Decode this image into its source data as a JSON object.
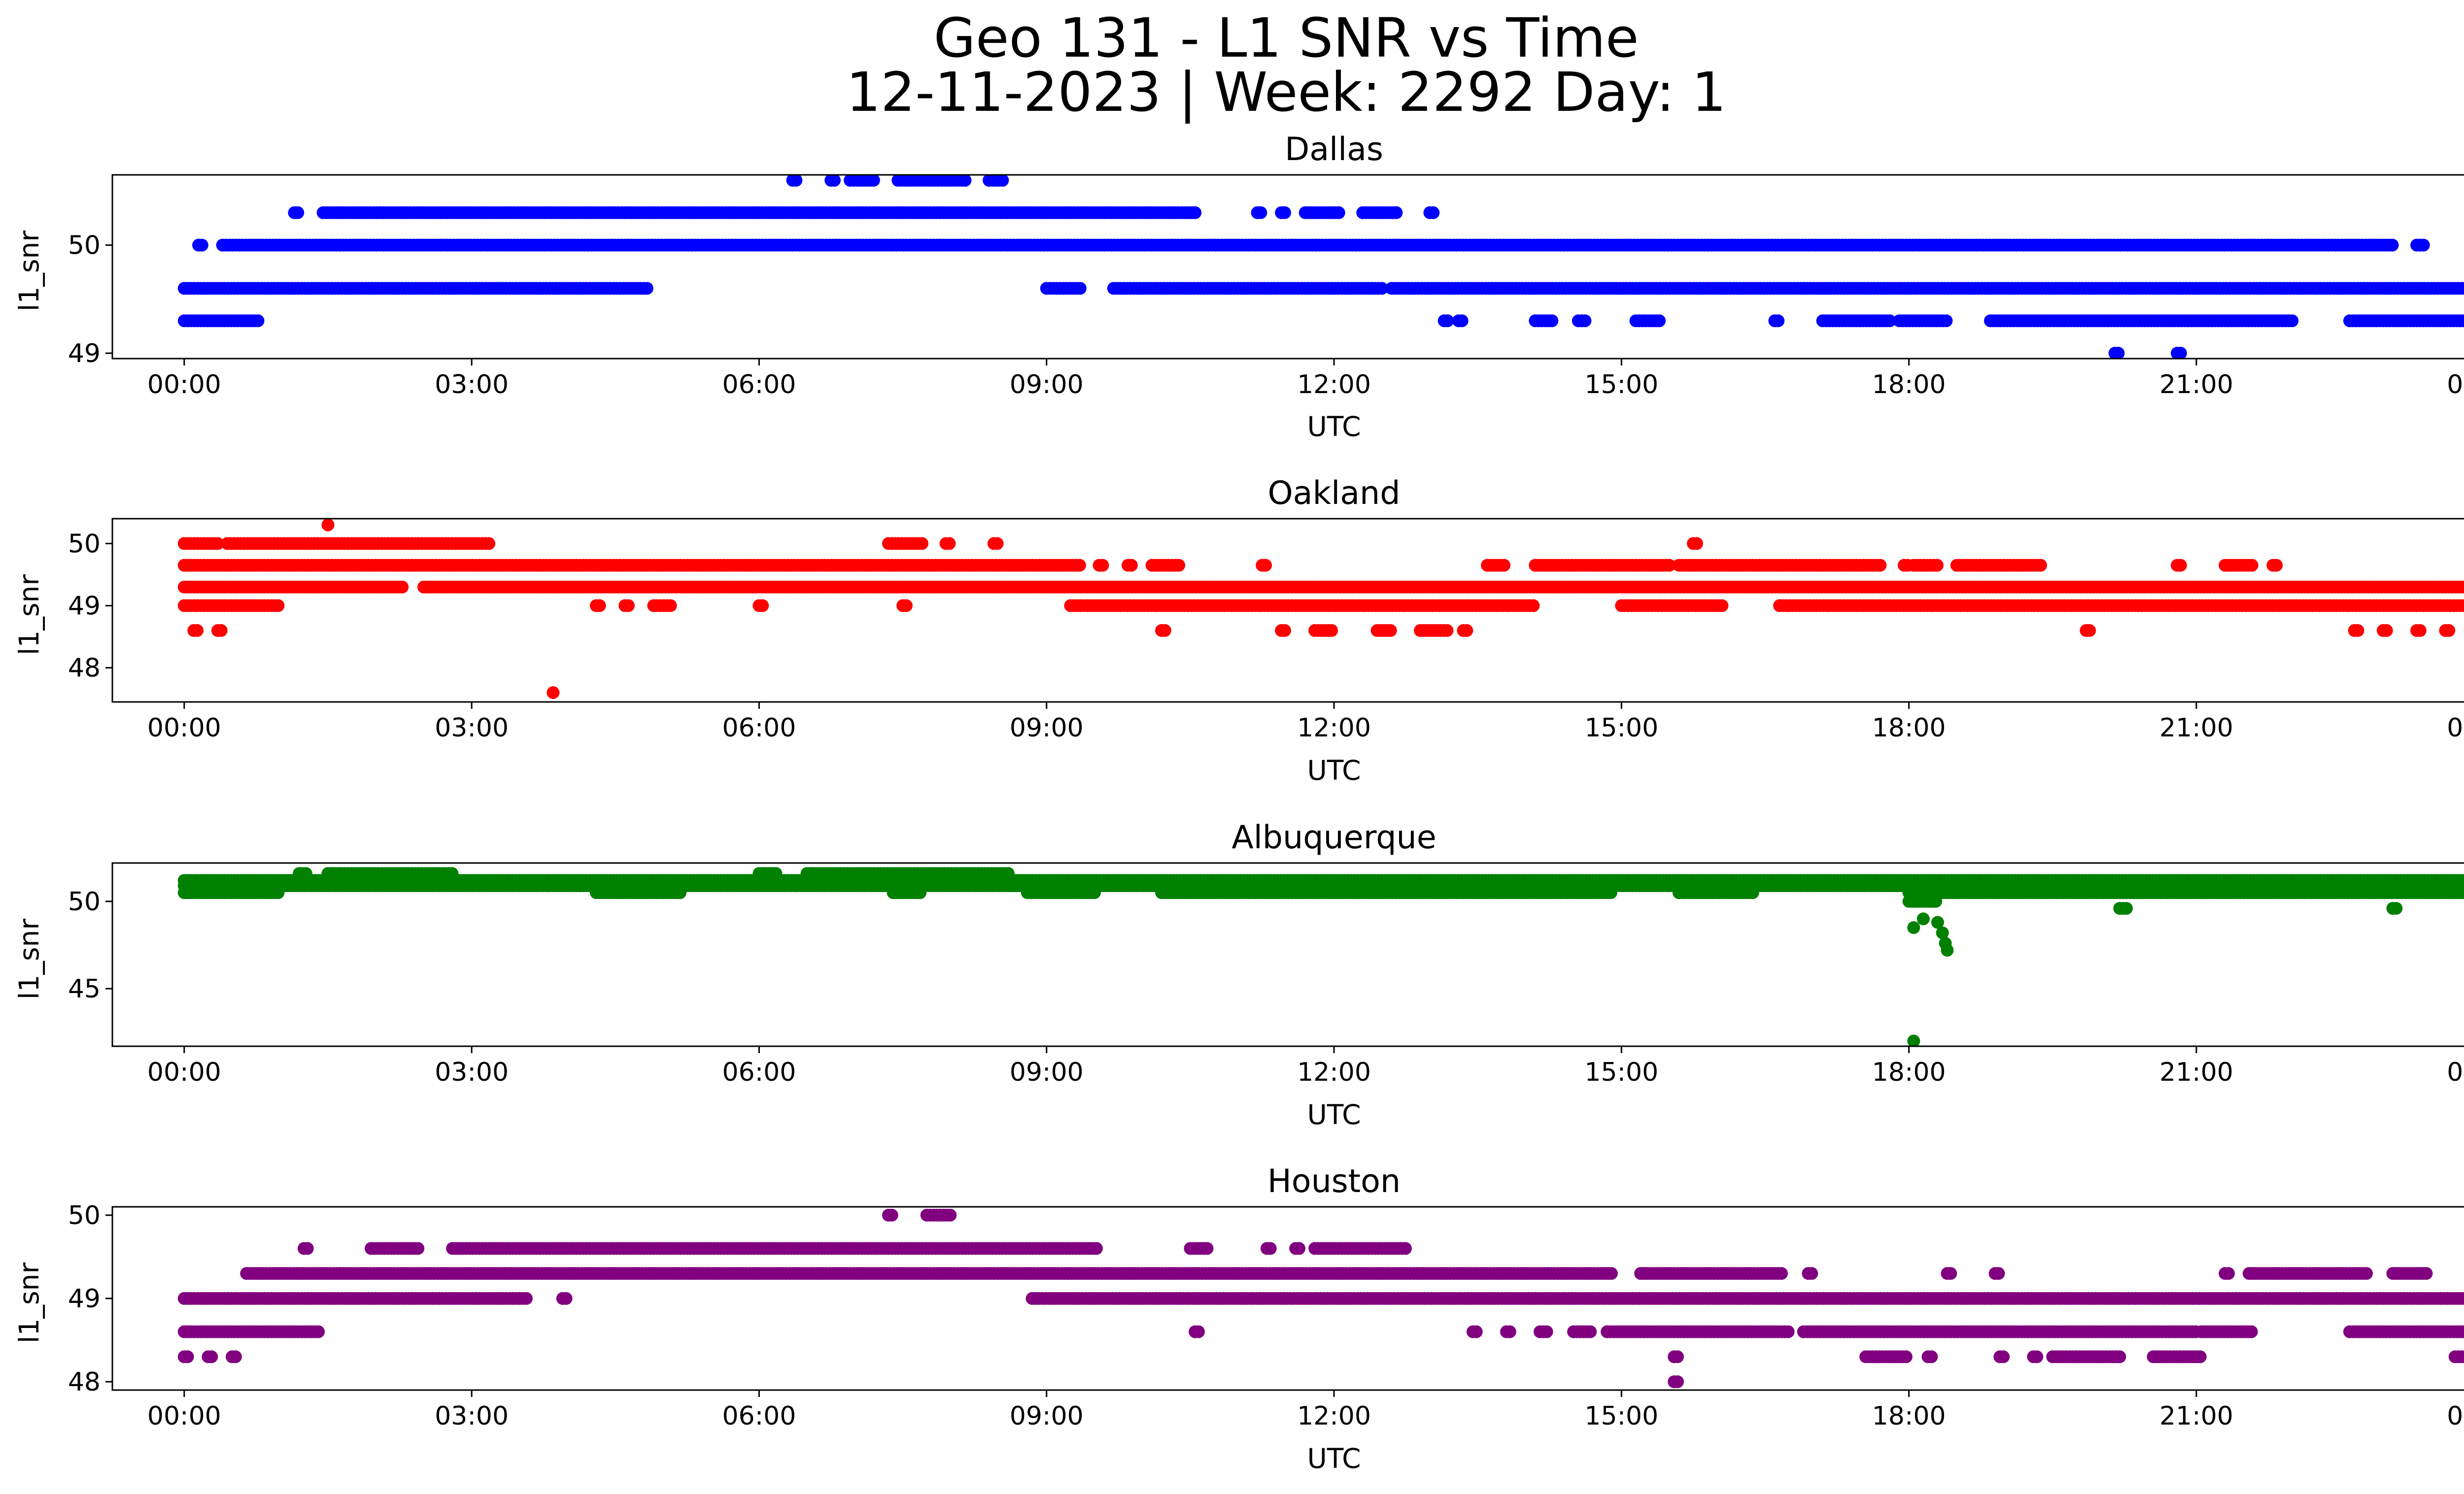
{
  "figure": {
    "title_line1": "Geo 131 - L1 SNR vs Time",
    "title_line2": "12-11-2023 | Week: 2292 Day: 1"
  },
  "chart_data": [
    {
      "type": "scatter",
      "title": "Dallas",
      "xlabel": "UTC",
      "ylabel": "l1_snr",
      "color": "#0000ff",
      "xlim": [
        -0.75,
        24.75
      ],
      "ylim": [
        48.95,
        50.65
      ],
      "xticks": [
        "00:00",
        "03:00",
        "06:00",
        "09:00",
        "12:00",
        "15:00",
        "18:00",
        "21:00",
        "00:00"
      ],
      "yticks": [
        49,
        50
      ],
      "bands": [
        {
          "y": 50.6,
          "segments": [
            [
              6.35,
              6.4
            ],
            [
              6.75,
              6.8
            ],
            [
              6.95,
              7.2
            ],
            [
              7.45,
              8.15
            ],
            [
              8.4,
              8.55
            ]
          ]
        },
        {
          "y": 50.3,
          "segments": [
            [
              1.15,
              1.2
            ],
            [
              1.45,
              10.55
            ],
            [
              11.2,
              11.25
            ],
            [
              11.45,
              11.5
            ],
            [
              11.7,
              12.05
            ],
            [
              12.3,
              12.65
            ],
            [
              13.0,
              13.05
            ]
          ]
        },
        {
          "y": 50.0,
          "segments": [
            [
              0.15,
              0.2
            ],
            [
              0.4,
              23.05
            ],
            [
              23.3,
              23.4
            ]
          ]
        },
        {
          "y": 49.6,
          "segments": [
            [
              0.0,
              4.85
            ],
            [
              9.0,
              9.35
            ],
            [
              9.7,
              12.5
            ],
            [
              12.6,
              24.0
            ]
          ]
        },
        {
          "y": 49.3,
          "segments": [
            [
              0.0,
              0.8
            ],
            [
              13.15,
              13.2
            ],
            [
              13.3,
              13.35
            ],
            [
              14.1,
              14.3
            ],
            [
              14.55,
              14.65
            ],
            [
              15.15,
              15.4
            ],
            [
              16.6,
              16.65
            ],
            [
              17.1,
              17.8
            ],
            [
              17.9,
              18.4
            ],
            [
              18.85,
              22.0
            ],
            [
              22.6,
              24.0
            ]
          ]
        },
        {
          "y": 49.0,
          "segments": [
            [
              20.15,
              20.2
            ],
            [
              20.8,
              20.85
            ]
          ]
        }
      ],
      "points": []
    },
    {
      "type": "scatter",
      "title": "Oakland",
      "xlabel": "UTC",
      "ylabel": "l1_snr",
      "color": "#ff0000",
      "xlim": [
        -0.75,
        24.75
      ],
      "ylim": [
        47.45,
        50.4
      ],
      "xticks": [
        "00:00",
        "03:00",
        "06:00",
        "09:00",
        "12:00",
        "15:00",
        "18:00",
        "21:00",
        "00:00"
      ],
      "yticks": [
        48,
        49,
        50
      ],
      "bands": [
        {
          "y": 50.0,
          "segments": [
            [
              0.0,
              0.35
            ],
            [
              0.45,
              3.2
            ],
            [
              7.35,
              7.7
            ],
            [
              7.95,
              8.0
            ],
            [
              8.45,
              8.5
            ],
            [
              15.75,
              15.8
            ]
          ]
        },
        {
          "y": 49.65,
          "segments": [
            [
              0.0,
              9.35
            ],
            [
              9.55,
              9.6
            ],
            [
              9.85,
              9.9
            ],
            [
              10.1,
              10.4
            ],
            [
              11.25,
              11.3
            ],
            [
              13.6,
              13.8
            ],
            [
              14.1,
              15.5
            ],
            [
              15.6,
              17.7
            ],
            [
              17.95,
              18.0
            ],
            [
              18.05,
              18.3
            ],
            [
              18.5,
              19.4
            ],
            [
              20.8,
              20.85
            ],
            [
              21.3,
              21.6
            ],
            [
              21.8,
              21.85
            ]
          ]
        },
        {
          "y": 49.3,
          "segments": [
            [
              0.0,
              2.3
            ],
            [
              2.5,
              24.0
            ]
          ]
        },
        {
          "y": 49.0,
          "segments": [
            [
              0.0,
              1.0
            ],
            [
              4.3,
              4.35
            ],
            [
              4.6,
              4.65
            ],
            [
              4.9,
              5.1
            ],
            [
              6.0,
              6.05
            ],
            [
              7.5,
              7.55
            ],
            [
              9.25,
              14.1
            ],
            [
              15.0,
              16.05
            ],
            [
              16.65,
              24.0
            ]
          ]
        },
        {
          "y": 48.6,
          "segments": [
            [
              0.1,
              0.15
            ],
            [
              0.35,
              0.4
            ],
            [
              10.2,
              10.25
            ],
            [
              11.45,
              11.5
            ],
            [
              11.8,
              12.0
            ],
            [
              12.45,
              12.6
            ],
            [
              12.9,
              13.2
            ],
            [
              13.35,
              13.4
            ],
            [
              19.85,
              19.9
            ],
            [
              22.65,
              22.7
            ],
            [
              22.95,
              23.0
            ],
            [
              23.3,
              23.35
            ],
            [
              23.6,
              23.65
            ]
          ]
        }
      ],
      "points": [
        {
          "x": 1.5,
          "y": 50.3
        },
        {
          "x": 3.85,
          "y": 47.6
        }
      ]
    },
    {
      "type": "scatter",
      "title": "Albuquerque",
      "xlabel": "UTC",
      "ylabel": "l1_snr",
      "color": "#008000",
      "xlim": [
        -0.75,
        24.75
      ],
      "ylim": [
        41.7,
        52.2
      ],
      "xticks": [
        "00:00",
        "03:00",
        "06:00",
        "09:00",
        "12:00",
        "15:00",
        "18:00",
        "21:00",
        "00:00"
      ],
      "yticks": [
        45,
        50
      ],
      "bands": [
        {
          "y": 51.6,
          "segments": [
            [
              1.2,
              1.3
            ],
            [
              1.5,
              2.8
            ],
            [
              6.0,
              6.2
            ],
            [
              6.5,
              8.6
            ]
          ]
        },
        {
          "y": 51.2,
          "segments": [
            [
              0.0,
              24.0
            ]
          ]
        },
        {
          "y": 50.9,
          "segments": [
            [
              0.0,
              24.0
            ]
          ]
        },
        {
          "y": 50.5,
          "segments": [
            [
              0.0,
              1.0
            ],
            [
              4.3,
              5.2
            ],
            [
              7.4,
              7.7
            ],
            [
              8.8,
              9.5
            ],
            [
              10.2,
              14.9
            ],
            [
              15.6,
              16.4
            ],
            [
              18.0,
              24.0
            ]
          ]
        },
        {
          "y": 50.0,
          "segments": [
            [
              18.0,
              18.3
            ]
          ]
        },
        {
          "y": 49.6,
          "segments": [
            [
              20.2,
              20.3
            ],
            [
              23.05,
              23.1
            ]
          ]
        }
      ],
      "points": [
        {
          "x": 18.05,
          "y": 48.5
        },
        {
          "x": 18.15,
          "y": 49.0
        },
        {
          "x": 18.3,
          "y": 48.8
        },
        {
          "x": 18.38,
          "y": 47.6
        },
        {
          "x": 18.4,
          "y": 47.2
        },
        {
          "x": 18.35,
          "y": 48.2
        },
        {
          "x": 18.05,
          "y": 42.0
        }
      ]
    },
    {
      "type": "scatter",
      "title": "Houston",
      "xlabel": "UTC",
      "ylabel": "l1_snr",
      "color": "#800080",
      "xlim": [
        -0.75,
        24.75
      ],
      "ylim": [
        47.9,
        50.1
      ],
      "xticks": [
        "00:00",
        "03:00",
        "06:00",
        "09:00",
        "12:00",
        "15:00",
        "18:00",
        "21:00",
        "00:00"
      ],
      "yticks": [
        48,
        49,
        50
      ],
      "bands": [
        {
          "y": 50.0,
          "segments": [
            [
              7.35,
              7.4
            ],
            [
              7.75,
              8.0
            ]
          ]
        },
        {
          "y": 49.6,
          "segments": [
            [
              1.25,
              1.3
            ],
            [
              1.95,
              2.45
            ],
            [
              2.8,
              9.55
            ],
            [
              10.5,
              10.7
            ],
            [
              11.3,
              11.35
            ],
            [
              11.6,
              11.65
            ],
            [
              11.8,
              12.75
            ]
          ]
        },
        {
          "y": 49.3,
          "segments": [
            [
              0.65,
              14.9
            ],
            [
              15.2,
              16.7
            ],
            [
              16.95,
              17.0
            ],
            [
              18.4,
              18.45
            ],
            [
              18.9,
              18.95
            ],
            [
              21.3,
              21.35
            ],
            [
              21.55,
              22.8
            ],
            [
              23.05,
              23.4
            ]
          ]
        },
        {
          "y": 49.0,
          "segments": [
            [
              0.0,
              3.6
            ],
            [
              3.95,
              4.0
            ],
            [
              8.85,
              24.0
            ]
          ]
        },
        {
          "y": 48.6,
          "segments": [
            [
              0.0,
              1.4
            ],
            [
              10.55,
              10.6
            ],
            [
              13.45,
              13.5
            ],
            [
              13.8,
              13.85
            ],
            [
              14.15,
              14.25
            ],
            [
              14.5,
              14.7
            ],
            [
              14.85,
              16.75
            ],
            [
              16.9,
              21.0
            ],
            [
              21.05,
              21.6
            ],
            [
              22.6,
              24.0
            ]
          ]
        },
        {
          "y": 48.3,
          "segments": [
            [
              0.0,
              0.05
            ],
            [
              0.25,
              0.3
            ],
            [
              0.5,
              0.55
            ],
            [
              15.55,
              15.6
            ],
            [
              17.55,
              18.0
            ],
            [
              18.2,
              18.25
            ],
            [
              18.95,
              19.0
            ],
            [
              19.3,
              19.35
            ],
            [
              19.5,
              20.2
            ],
            [
              20.55,
              21.05
            ],
            [
              23.7,
              23.9
            ]
          ]
        },
        {
          "y": 48.0,
          "segments": [
            [
              15.55,
              15.6
            ]
          ]
        }
      ],
      "points": []
    }
  ]
}
